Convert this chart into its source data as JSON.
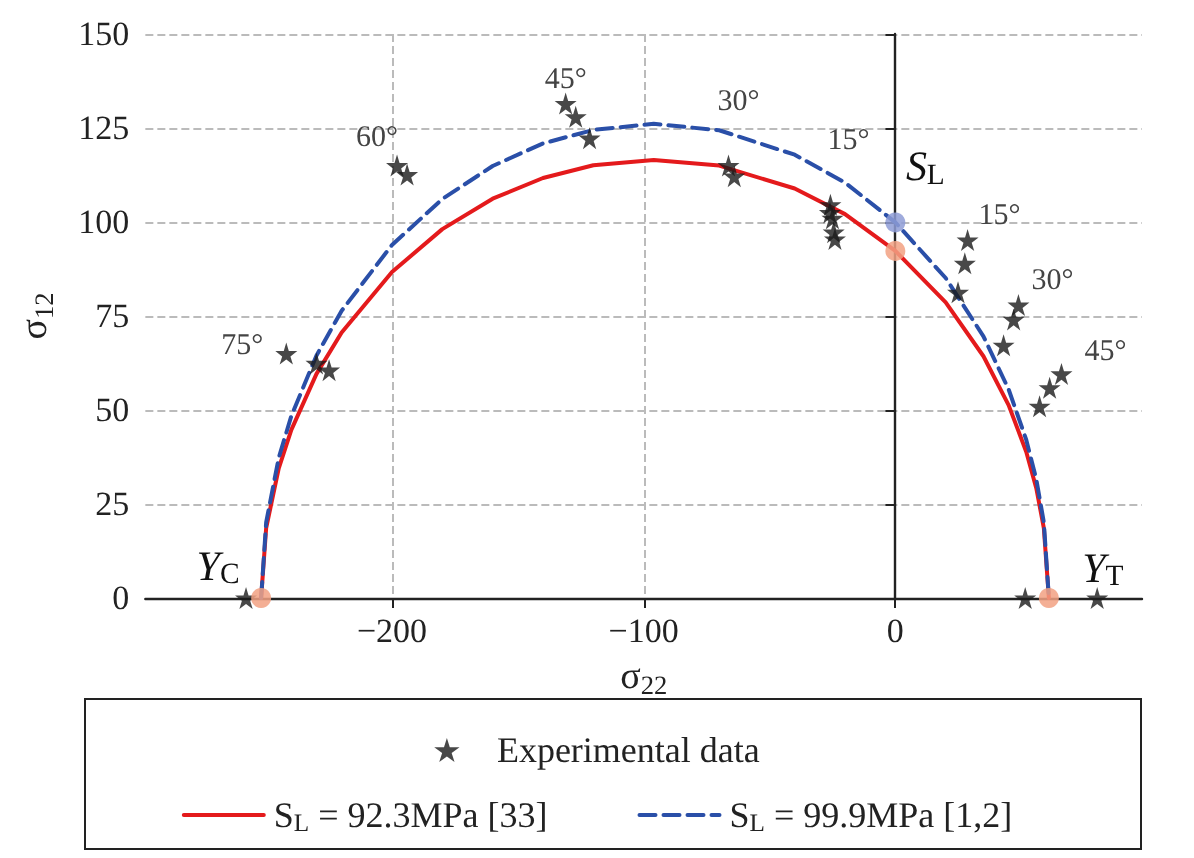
{
  "chart_data": {
    "type": "line",
    "xlabel": "σ$_{22}$",
    "ylabel": "σ$_{12}$",
    "xlim": [
      -298,
      98
    ],
    "xticks": [
      {
        "value": -200,
        "label": "−200"
      },
      {
        "value": -100,
        "label": "−100"
      },
      0
    ],
    "ylim": [
      0,
      150
    ],
    "yticks": [
      0,
      25,
      50,
      75,
      100,
      125,
      150
    ],
    "grid": true,
    "legend": "bottom",
    "series": [
      {
        "name": "Experimental data",
        "type": "scatter",
        "marker": "star",
        "color": "#1a1a1a",
        "x": [
          -258,
          -242,
          -230,
          -225,
          -198,
          -194,
          -131,
          -127,
          -121.5,
          -66.3,
          -64,
          -25.8,
          -26,
          -25,
          -24.5,
          -24,
          28.7,
          27.6,
          24.9,
          48.9,
          47,
          43,
          66,
          61.3,
          57.3,
          51.6,
          80.2
        ],
        "values": [
          0,
          65,
          62.4,
          60.6,
          115,
          112.6,
          131.5,
          128,
          122.3,
          115,
          112.2,
          104.6,
          102.5,
          101,
          97.3,
          95.5,
          95.2,
          89,
          81.3,
          77.9,
          74.1,
          67.2,
          59.6,
          55.9,
          51,
          0,
          0
        ]
      },
      {
        "name": "S$_{L}$ = 92.3MPa [33]",
        "type": "line",
        "line_style": "solid",
        "color": "#e41a1c",
        "x": [
          -252,
          -250,
          -245,
          -240,
          -230,
          -220,
          -200,
          -180,
          -160,
          -140,
          -120,
          -96,
          -70,
          -40,
          -20,
          0,
          20,
          35,
          45,
          52,
          56,
          59,
          61
        ],
        "values": [
          0,
          18.6,
          34.5,
          44.7,
          59.6,
          70.6,
          86.7,
          98.1,
          106.2,
          111.7,
          115.1,
          116.5,
          115.0,
          108.9,
          102.1,
          92.3,
          78.6,
          64.3,
          51.3,
          38.9,
          29.2,
          18.6,
          0
        ]
      },
      {
        "name": "S$_{L}$ = 99.9MPa [1,2]",
        "type": "line",
        "line_style": "dashed",
        "color": "#2a4fa8",
        "x": [
          -252,
          -250,
          -245,
          -240,
          -230,
          -220,
          -200,
          -180,
          -160,
          -140,
          -120,
          -96,
          -70,
          -40,
          -20,
          0,
          20,
          35,
          45,
          52,
          56,
          59,
          61
        ],
        "values": [
          0,
          20.1,
          37.3,
          48.4,
          64.5,
          76.4,
          93.9,
          106.1,
          114.9,
          120.9,
          124.5,
          126.1,
          124.4,
          117.9,
          110.5,
          99.9,
          85.1,
          69.6,
          55.5,
          42.1,
          31.6,
          20.1,
          0
        ]
      },
      {
        "type": "scatter",
        "marker": "circle",
        "colors": [
          "#8e9cd6",
          "#f2a183",
          "#f2a183",
          "#f2a183"
        ],
        "x": [
          0,
          0,
          -252,
          61
        ],
        "values": [
          99.9,
          92.3,
          0,
          0
        ]
      }
    ],
    "annotations": [
      {
        "text": "75°",
        "x": -242,
        "y": 65
      },
      {
        "text": "60°",
        "x": -198,
        "y": 115
      },
      {
        "text": "45°",
        "x": -131,
        "y": 131.5
      },
      {
        "text": "30°",
        "x": -66.3,
        "y": 115
      },
      {
        "text": "15°",
        "x": -25.8,
        "y": 104.6
      },
      {
        "text": "S$_{L}$",
        "x": 0,
        "y": 99.9
      },
      {
        "text": "15°",
        "x": 28.7,
        "y": 95.2
      },
      {
        "text": "30°",
        "x": 48.9,
        "y": 77.9
      },
      {
        "text": "45°",
        "x": 66,
        "y": 59.6
      },
      {
        "text": "Y$_{C}$",
        "x": -258,
        "y": 0
      },
      {
        "text": "Y$_{T}$",
        "x": 61,
        "y": 0
      }
    ]
  }
}
